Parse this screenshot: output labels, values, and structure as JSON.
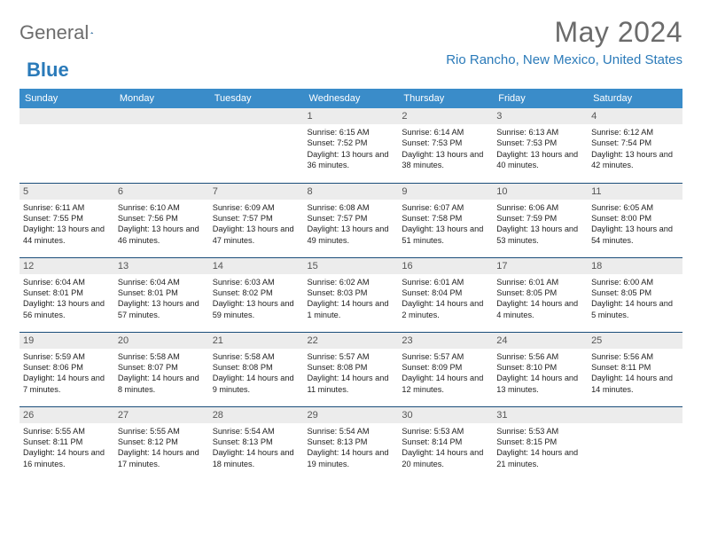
{
  "logo": {
    "word1": "General",
    "word2": "Blue"
  },
  "title": "May 2024",
  "location": "Rio Rancho, New Mexico, United States",
  "colors": {
    "header_bg": "#3a8cc9",
    "accent_text": "#2a7ab9",
    "row_divider": "#1a4d7a",
    "daynum_bg": "#ececec",
    "title_color": "#6b6b6b"
  },
  "weekdays": [
    "Sunday",
    "Monday",
    "Tuesday",
    "Wednesday",
    "Thursday",
    "Friday",
    "Saturday"
  ],
  "weeks": [
    [
      {
        "n": "",
        "sr": "",
        "ss": "",
        "dl": ""
      },
      {
        "n": "",
        "sr": "",
        "ss": "",
        "dl": ""
      },
      {
        "n": "",
        "sr": "",
        "ss": "",
        "dl": ""
      },
      {
        "n": "1",
        "sr": "Sunrise: 6:15 AM",
        "ss": "Sunset: 7:52 PM",
        "dl": "Daylight: 13 hours and 36 minutes."
      },
      {
        "n": "2",
        "sr": "Sunrise: 6:14 AM",
        "ss": "Sunset: 7:53 PM",
        "dl": "Daylight: 13 hours and 38 minutes."
      },
      {
        "n": "3",
        "sr": "Sunrise: 6:13 AM",
        "ss": "Sunset: 7:53 PM",
        "dl": "Daylight: 13 hours and 40 minutes."
      },
      {
        "n": "4",
        "sr": "Sunrise: 6:12 AM",
        "ss": "Sunset: 7:54 PM",
        "dl": "Daylight: 13 hours and 42 minutes."
      }
    ],
    [
      {
        "n": "5",
        "sr": "Sunrise: 6:11 AM",
        "ss": "Sunset: 7:55 PM",
        "dl": "Daylight: 13 hours and 44 minutes."
      },
      {
        "n": "6",
        "sr": "Sunrise: 6:10 AM",
        "ss": "Sunset: 7:56 PM",
        "dl": "Daylight: 13 hours and 46 minutes."
      },
      {
        "n": "7",
        "sr": "Sunrise: 6:09 AM",
        "ss": "Sunset: 7:57 PM",
        "dl": "Daylight: 13 hours and 47 minutes."
      },
      {
        "n": "8",
        "sr": "Sunrise: 6:08 AM",
        "ss": "Sunset: 7:57 PM",
        "dl": "Daylight: 13 hours and 49 minutes."
      },
      {
        "n": "9",
        "sr": "Sunrise: 6:07 AM",
        "ss": "Sunset: 7:58 PM",
        "dl": "Daylight: 13 hours and 51 minutes."
      },
      {
        "n": "10",
        "sr": "Sunrise: 6:06 AM",
        "ss": "Sunset: 7:59 PM",
        "dl": "Daylight: 13 hours and 53 minutes."
      },
      {
        "n": "11",
        "sr": "Sunrise: 6:05 AM",
        "ss": "Sunset: 8:00 PM",
        "dl": "Daylight: 13 hours and 54 minutes."
      }
    ],
    [
      {
        "n": "12",
        "sr": "Sunrise: 6:04 AM",
        "ss": "Sunset: 8:01 PM",
        "dl": "Daylight: 13 hours and 56 minutes."
      },
      {
        "n": "13",
        "sr": "Sunrise: 6:04 AM",
        "ss": "Sunset: 8:01 PM",
        "dl": "Daylight: 13 hours and 57 minutes."
      },
      {
        "n": "14",
        "sr": "Sunrise: 6:03 AM",
        "ss": "Sunset: 8:02 PM",
        "dl": "Daylight: 13 hours and 59 minutes."
      },
      {
        "n": "15",
        "sr": "Sunrise: 6:02 AM",
        "ss": "Sunset: 8:03 PM",
        "dl": "Daylight: 14 hours and 1 minute."
      },
      {
        "n": "16",
        "sr": "Sunrise: 6:01 AM",
        "ss": "Sunset: 8:04 PM",
        "dl": "Daylight: 14 hours and 2 minutes."
      },
      {
        "n": "17",
        "sr": "Sunrise: 6:01 AM",
        "ss": "Sunset: 8:05 PM",
        "dl": "Daylight: 14 hours and 4 minutes."
      },
      {
        "n": "18",
        "sr": "Sunrise: 6:00 AM",
        "ss": "Sunset: 8:05 PM",
        "dl": "Daylight: 14 hours and 5 minutes."
      }
    ],
    [
      {
        "n": "19",
        "sr": "Sunrise: 5:59 AM",
        "ss": "Sunset: 8:06 PM",
        "dl": "Daylight: 14 hours and 7 minutes."
      },
      {
        "n": "20",
        "sr": "Sunrise: 5:58 AM",
        "ss": "Sunset: 8:07 PM",
        "dl": "Daylight: 14 hours and 8 minutes."
      },
      {
        "n": "21",
        "sr": "Sunrise: 5:58 AM",
        "ss": "Sunset: 8:08 PM",
        "dl": "Daylight: 14 hours and 9 minutes."
      },
      {
        "n": "22",
        "sr": "Sunrise: 5:57 AM",
        "ss": "Sunset: 8:08 PM",
        "dl": "Daylight: 14 hours and 11 minutes."
      },
      {
        "n": "23",
        "sr": "Sunrise: 5:57 AM",
        "ss": "Sunset: 8:09 PM",
        "dl": "Daylight: 14 hours and 12 minutes."
      },
      {
        "n": "24",
        "sr": "Sunrise: 5:56 AM",
        "ss": "Sunset: 8:10 PM",
        "dl": "Daylight: 14 hours and 13 minutes."
      },
      {
        "n": "25",
        "sr": "Sunrise: 5:56 AM",
        "ss": "Sunset: 8:11 PM",
        "dl": "Daylight: 14 hours and 14 minutes."
      }
    ],
    [
      {
        "n": "26",
        "sr": "Sunrise: 5:55 AM",
        "ss": "Sunset: 8:11 PM",
        "dl": "Daylight: 14 hours and 16 minutes."
      },
      {
        "n": "27",
        "sr": "Sunrise: 5:55 AM",
        "ss": "Sunset: 8:12 PM",
        "dl": "Daylight: 14 hours and 17 minutes."
      },
      {
        "n": "28",
        "sr": "Sunrise: 5:54 AM",
        "ss": "Sunset: 8:13 PM",
        "dl": "Daylight: 14 hours and 18 minutes."
      },
      {
        "n": "29",
        "sr": "Sunrise: 5:54 AM",
        "ss": "Sunset: 8:13 PM",
        "dl": "Daylight: 14 hours and 19 minutes."
      },
      {
        "n": "30",
        "sr": "Sunrise: 5:53 AM",
        "ss": "Sunset: 8:14 PM",
        "dl": "Daylight: 14 hours and 20 minutes."
      },
      {
        "n": "31",
        "sr": "Sunrise: 5:53 AM",
        "ss": "Sunset: 8:15 PM",
        "dl": "Daylight: 14 hours and 21 minutes."
      },
      {
        "n": "",
        "sr": "",
        "ss": "",
        "dl": ""
      }
    ]
  ]
}
